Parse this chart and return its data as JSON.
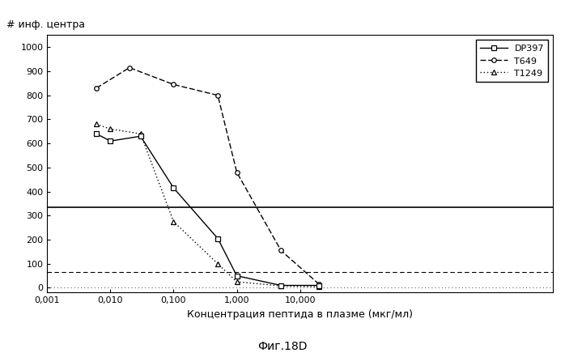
{
  "title_fig": "Фиг.18D",
  "ylabel": "# инф. центра",
  "xlabel": "Концентрация пептида в плазме (мкг/мл)",
  "xlim": [
    0.001,
    100000
  ],
  "ylim": [
    -20,
    1050
  ],
  "yticks": [
    0,
    100,
    200,
    300,
    400,
    500,
    600,
    700,
    800,
    900,
    1000
  ],
  "DP397_x": [
    0.006,
    0.01,
    0.03,
    0.1,
    0.5,
    1.0,
    5.0,
    20.0
  ],
  "DP397_y": [
    640,
    610,
    630,
    415,
    205,
    50,
    10,
    10
  ],
  "T649_x": [
    0.006,
    0.02,
    0.1,
    0.5,
    1.0,
    5.0,
    20.0
  ],
  "T649_y": [
    830,
    915,
    845,
    800,
    480,
    155,
    15
  ],
  "T1249_x": [
    0.006,
    0.01,
    0.03,
    0.1,
    0.5,
    1.0,
    5.0,
    20.0
  ],
  "T1249_y": [
    680,
    660,
    640,
    275,
    100,
    25,
    8,
    5
  ],
  "hline1_y": 335,
  "hline2_y": 65,
  "hline3_y": 0,
  "xtick_positions": [
    0.001,
    0.01,
    0.1,
    1.0,
    10.0
  ],
  "xtick_labels": [
    "0,001",
    "0,010",
    "0,100",
    "1,000",
    "10,000"
  ],
  "legend_labels": [
    "DP397",
    "T649",
    "T1249"
  ],
  "background_color": "#ffffff"
}
